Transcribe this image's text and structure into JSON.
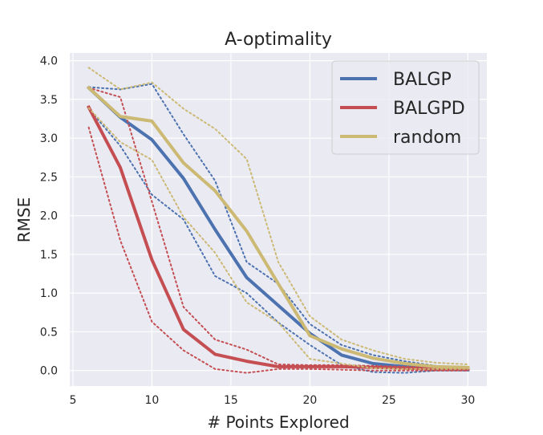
{
  "chart_data": {
    "type": "line",
    "title": "A-optimality",
    "xlabel": "# Points Explored",
    "ylabel": "RMSE",
    "xlim": [
      4.8,
      31.2
    ],
    "ylim": [
      -0.2,
      4.1
    ],
    "xticks": [
      5,
      10,
      15,
      20,
      25,
      30
    ],
    "xtick_labels": [
      "5",
      "10",
      "15",
      "20",
      "25",
      "30"
    ],
    "yticks": [
      0.0,
      0.5,
      1.0,
      1.5,
      2.0,
      2.5,
      3.0,
      3.5,
      4.0
    ],
    "ytick_labels": [
      "0.0",
      "0.5",
      "1.0",
      "1.5",
      "2.0",
      "2.5",
      "3.0",
      "3.5",
      "4.0"
    ],
    "grid": true,
    "legend_position": "top-right",
    "x": [
      6,
      8,
      10,
      12,
      14,
      16,
      18,
      20,
      22,
      24,
      26,
      28,
      30
    ],
    "series": [
      {
        "name": "BALGP",
        "color": "#4c72b0",
        "values": [
          3.65,
          3.27,
          2.98,
          2.48,
          1.82,
          1.2,
          0.84,
          0.48,
          0.2,
          0.09,
          0.05,
          0.02,
          0.01
        ],
        "upper": [
          3.66,
          3.63,
          3.7,
          3.05,
          2.45,
          1.4,
          1.12,
          0.6,
          0.33,
          0.2,
          0.12,
          0.06,
          0.03
        ],
        "lower": [
          3.38,
          2.9,
          2.27,
          1.95,
          1.22,
          1.0,
          0.62,
          0.33,
          0.07,
          -0.02,
          -0.03,
          0.0,
          0.0
        ]
      },
      {
        "name": "BALGPD",
        "color": "#c44e52",
        "values": [
          3.4,
          2.62,
          1.43,
          0.53,
          0.21,
          0.12,
          0.05,
          0.05,
          0.05,
          0.04,
          0.03,
          0.02,
          0.02
        ],
        "upper": [
          3.65,
          3.53,
          2.18,
          0.82,
          0.4,
          0.27,
          0.08,
          0.07,
          0.07,
          0.06,
          0.05,
          0.04,
          0.04
        ],
        "lower": [
          3.14,
          1.68,
          0.63,
          0.26,
          0.02,
          -0.03,
          0.02,
          0.02,
          0.01,
          0.0,
          0.0,
          0.0,
          0.0
        ]
      },
      {
        "name": "random",
        "color": "#ccb974",
        "values": [
          3.65,
          3.28,
          3.22,
          2.68,
          2.32,
          1.8,
          1.12,
          0.45,
          0.28,
          0.16,
          0.09,
          0.05,
          0.04
        ],
        "upper": [
          3.91,
          3.63,
          3.72,
          3.38,
          3.12,
          2.73,
          1.4,
          0.7,
          0.4,
          0.26,
          0.15,
          0.1,
          0.08
        ],
        "lower": [
          3.39,
          2.95,
          2.72,
          1.98,
          1.52,
          0.88,
          0.62,
          0.15,
          0.09,
          0.03,
          0.02,
          0.02,
          0.02
        ]
      }
    ]
  }
}
